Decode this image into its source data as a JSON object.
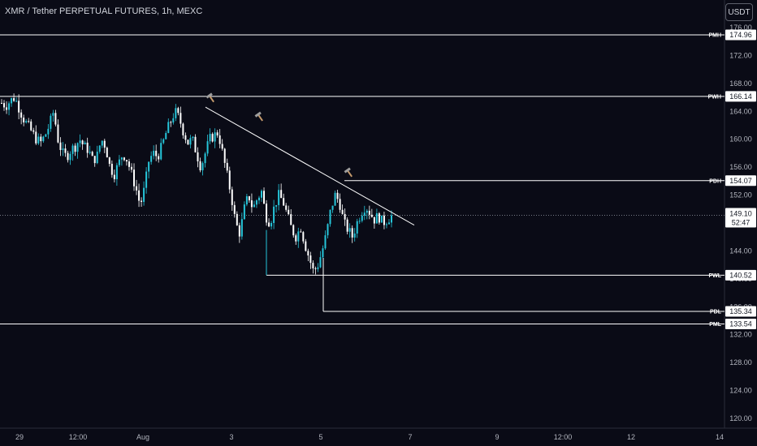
{
  "header": {
    "title": "XMR / Tether PERPETUAL FUTURES, 1h, MEXC",
    "currency_button": "USDT"
  },
  "chart_data": {
    "type": "candlestick",
    "ylim": [
      118.5,
      177
    ],
    "y_ticks": [
      "176.00",
      "172.00",
      "168.00",
      "164.00",
      "160.00",
      "156.00",
      "152.00",
      "148.00",
      "144.00",
      "140.00",
      "136.00",
      "132.00",
      "128.00",
      "124.00",
      "120.00"
    ],
    "x_ticks": [
      "29",
      "12:00",
      "Aug",
      "3",
      "5",
      "7",
      "9",
      "12:00",
      "12",
      "14"
    ],
    "current_price": "149.10",
    "countdown": "52:47",
    "levels": [
      {
        "name": "PMH",
        "value": "174.96",
        "start": "29"
      },
      {
        "name": "PWH",
        "value": "166.14",
        "start": "29"
      },
      {
        "name": "PDH",
        "value": "154.07",
        "start": "5"
      },
      {
        "name": "PWL",
        "value": "140.52",
        "start": "3"
      },
      {
        "name": "PDL",
        "value": "135.34",
        "start": "5"
      },
      {
        "name": "PML",
        "value": "133.54",
        "start": "29"
      }
    ],
    "trendline": [
      [
        164.6,
        147.7
      ]
    ],
    "hammer_markers": 3,
    "price_path": [
      165.2,
      164.8,
      165.5,
      166.0,
      164.5,
      163.0,
      162.0,
      161.0,
      160.0,
      159.5,
      160.5,
      162.0,
      164.0,
      160.0,
      158.0,
      157.5,
      158.5,
      159.0,
      160.0,
      159.0,
      158.5,
      157.0,
      157.5,
      160.0,
      159.0,
      156.0,
      155.0,
      156.5,
      158.0,
      157.0,
      155.0,
      153.0,
      150.5,
      153.0,
      157.0,
      158.0,
      157.5,
      159.0,
      161.0,
      162.5,
      164.0,
      163.0,
      161.0,
      159.5,
      160.0,
      158.0,
      156.0,
      158.0,
      160.0,
      160.5,
      161.0,
      158.0,
      155.0,
      152.0,
      148.0,
      146.5,
      150.0,
      152.0,
      150.0,
      151.5,
      152.5,
      149.0,
      148.0,
      150.5,
      152.0,
      151.0,
      149.0,
      147.0,
      146.0,
      147.5,
      145.0,
      143.0,
      141.0,
      142.0,
      144.0,
      146.5,
      150.0,
      152.0,
      151.0,
      148.0,
      147.0,
      146.0,
      148.0,
      149.5,
      150.5,
      149.5,
      148.5,
      149.0,
      148.0,
      148.5,
      149.0
    ],
    "colors": {
      "up": "#26c6da",
      "down": "#ffffff",
      "level": "#ffffff",
      "background": "#0a0b16"
    }
  }
}
